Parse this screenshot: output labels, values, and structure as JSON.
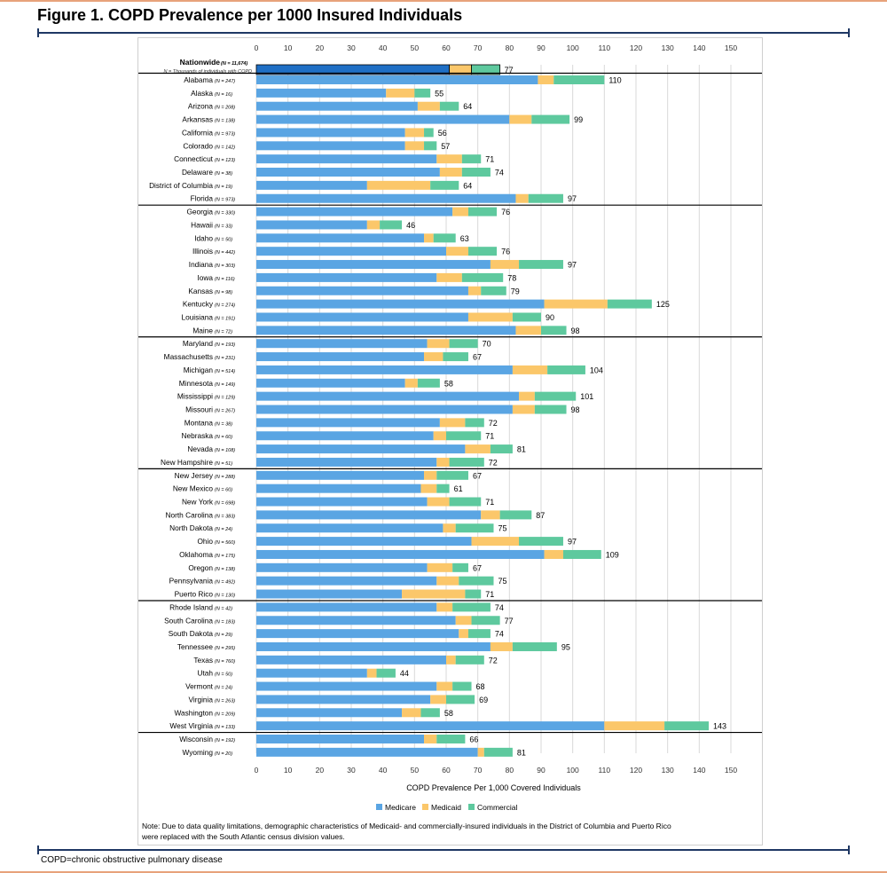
{
  "title": "Figure 1. COPD Prevalence per 1000 Insured Individuals",
  "footnote": "COPD=chronic obstructive pulmonary disease",
  "colors": {
    "medicare": "#5aa5e3",
    "medicaid": "#fbc76a",
    "commercial": "#5ec99e",
    "nationwide_medicare": "#1f6fc5",
    "separator": "#000000",
    "frame": "#1f3864",
    "accent": "#e8a27a"
  },
  "chart_data": {
    "type": "bar",
    "orientation": "horizontal",
    "stacked": true,
    "xlabel": "COPD Prevalence Per 1,000 Covered Individuals",
    "xlim": [
      0,
      150
    ],
    "xticks": [
      0,
      10,
      20,
      30,
      40,
      50,
      60,
      70,
      80,
      90,
      100,
      110,
      120,
      130,
      140,
      150
    ],
    "grid": true,
    "legend": {
      "position": "bottom",
      "entries": [
        "Medicare",
        "Medicaid",
        "Commercial"
      ]
    },
    "nationwide": {
      "label": "Nationwide",
      "n": "(N = 11,674)",
      "subnote": "N = Thousands of individuals with COPD",
      "values": [
        61,
        7,
        9
      ],
      "total": 77
    },
    "categories": [
      "Alabama",
      "Alaska",
      "Arizona",
      "Arkansas",
      "California",
      "Colorado",
      "Connecticut",
      "Delaware",
      "District of Columbia",
      "Florida",
      "Georgia",
      "Hawaii",
      "Idaho",
      "Illinois",
      "Indiana",
      "Iowa",
      "Kansas",
      "Kentucky",
      "Louisiana",
      "Maine",
      "Maryland",
      "Massachusetts",
      "Michigan",
      "Minnesota",
      "Mississippi",
      "Missouri",
      "Montana",
      "Nebraska",
      "Nevada",
      "New Hampshire",
      "New Jersey",
      "New Mexico",
      "New York",
      "North Carolina",
      "North Dakota",
      "Ohio",
      "Oklahoma",
      "Oregon",
      "Pennsylvania",
      "Puerto Rico",
      "Rhode Island",
      "South Carolina",
      "South Dakota",
      "Tennessee",
      "Texas",
      "Utah",
      "Vermont",
      "Virginia",
      "Washington",
      "West Virginia",
      "Wisconsin",
      "Wyoming"
    ],
    "n_labels": [
      "(N = 247)",
      "(N = 16)",
      "(N = 208)",
      "(N = 138)",
      "(N = 973)",
      "(N = 142)",
      "(N = 123)",
      "(N = 38)",
      "(N = 19)",
      "(N = 973)",
      "(N = 330)",
      "(N = 33)",
      "(N = 50)",
      "(N = 442)",
      "(N = 303)",
      "(N = 116)",
      "(N = 98)",
      "(N = 274)",
      "(N = 191)",
      "(N = 72)",
      "(N = 193)",
      "(N = 231)",
      "(N = 514)",
      "(N = 149)",
      "(N = 129)",
      "(N = 267)",
      "(N = 38)",
      "(N = 60)",
      "(N = 108)",
      "(N = 51)",
      "(N = 288)",
      "(N = 60)",
      "(N = 698)",
      "(N = 383)",
      "(N = 24)",
      "(N = 560)",
      "(N = 175)",
      "(N = 138)",
      "(N = 492)",
      "(N = 130)",
      "(N = 42)",
      "(N = 183)",
      "(N = 29)",
      "(N = 295)",
      "(N = 760)",
      "(N = 50)",
      "(N = 24)",
      "(N = 263)",
      "(N = 209)",
      "(N = 133)",
      "(N = 192)",
      "(N = 20)"
    ],
    "series": [
      {
        "name": "Medicare",
        "values": [
          89,
          41,
          51,
          80,
          47,
          47,
          57,
          58,
          35,
          82,
          62,
          35,
          53,
          60,
          74,
          57,
          67,
          91,
          67,
          82,
          54,
          53,
          81,
          47,
          83,
          81,
          58,
          56,
          66,
          57,
          53,
          52,
          54,
          71,
          59,
          68,
          91,
          54,
          57,
          46,
          57,
          63,
          64,
          74,
          60,
          35,
          57,
          55,
          46,
          110,
          53,
          70
        ]
      },
      {
        "name": "Medicaid",
        "values": [
          5,
          9,
          7,
          7,
          6,
          6,
          8,
          7,
          20,
          4,
          5,
          4,
          3,
          7,
          9,
          8,
          4,
          20,
          14,
          8,
          7,
          6,
          11,
          4,
          5,
          7,
          8,
          4,
          8,
          4,
          4,
          5,
          7,
          6,
          4,
          15,
          6,
          8,
          7,
          20,
          5,
          5,
          3,
          7,
          3,
          3,
          5,
          5,
          6,
          19,
          4,
          2
        ]
      },
      {
        "name": "Commercial",
        "values": [
          16,
          5,
          6,
          12,
          3,
          4,
          6,
          9,
          9,
          11,
          9,
          7,
          7,
          9,
          14,
          13,
          8,
          14,
          9,
          8,
          9,
          8,
          12,
          7,
          13,
          10,
          6,
          11,
          7,
          11,
          10,
          4,
          10,
          10,
          12,
          14,
          12,
          5,
          11,
          5,
          12,
          9,
          7,
          14,
          9,
          6,
          6,
          9,
          6,
          14,
          9,
          9
        ]
      }
    ],
    "totals": [
      110,
      55,
      64,
      99,
      56,
      57,
      71,
      74,
      64,
      97,
      76,
      46,
      63,
      76,
      97,
      78,
      79,
      125,
      90,
      98,
      70,
      67,
      104,
      58,
      101,
      98,
      72,
      71,
      81,
      72,
      67,
      61,
      71,
      87,
      75,
      97,
      109,
      67,
      75,
      71,
      74,
      77,
      74,
      95,
      72,
      44,
      68,
      69,
      58,
      143,
      66,
      81
    ],
    "group_breaks_after": [
      9,
      19,
      29,
      39,
      49
    ],
    "note": "Note: Due to data quality limitations, demographic characteristics of Medicaid- and commercially-insured individuals in the District of Columbia and Puerto Rico were replaced with the South Atlantic census division values."
  }
}
